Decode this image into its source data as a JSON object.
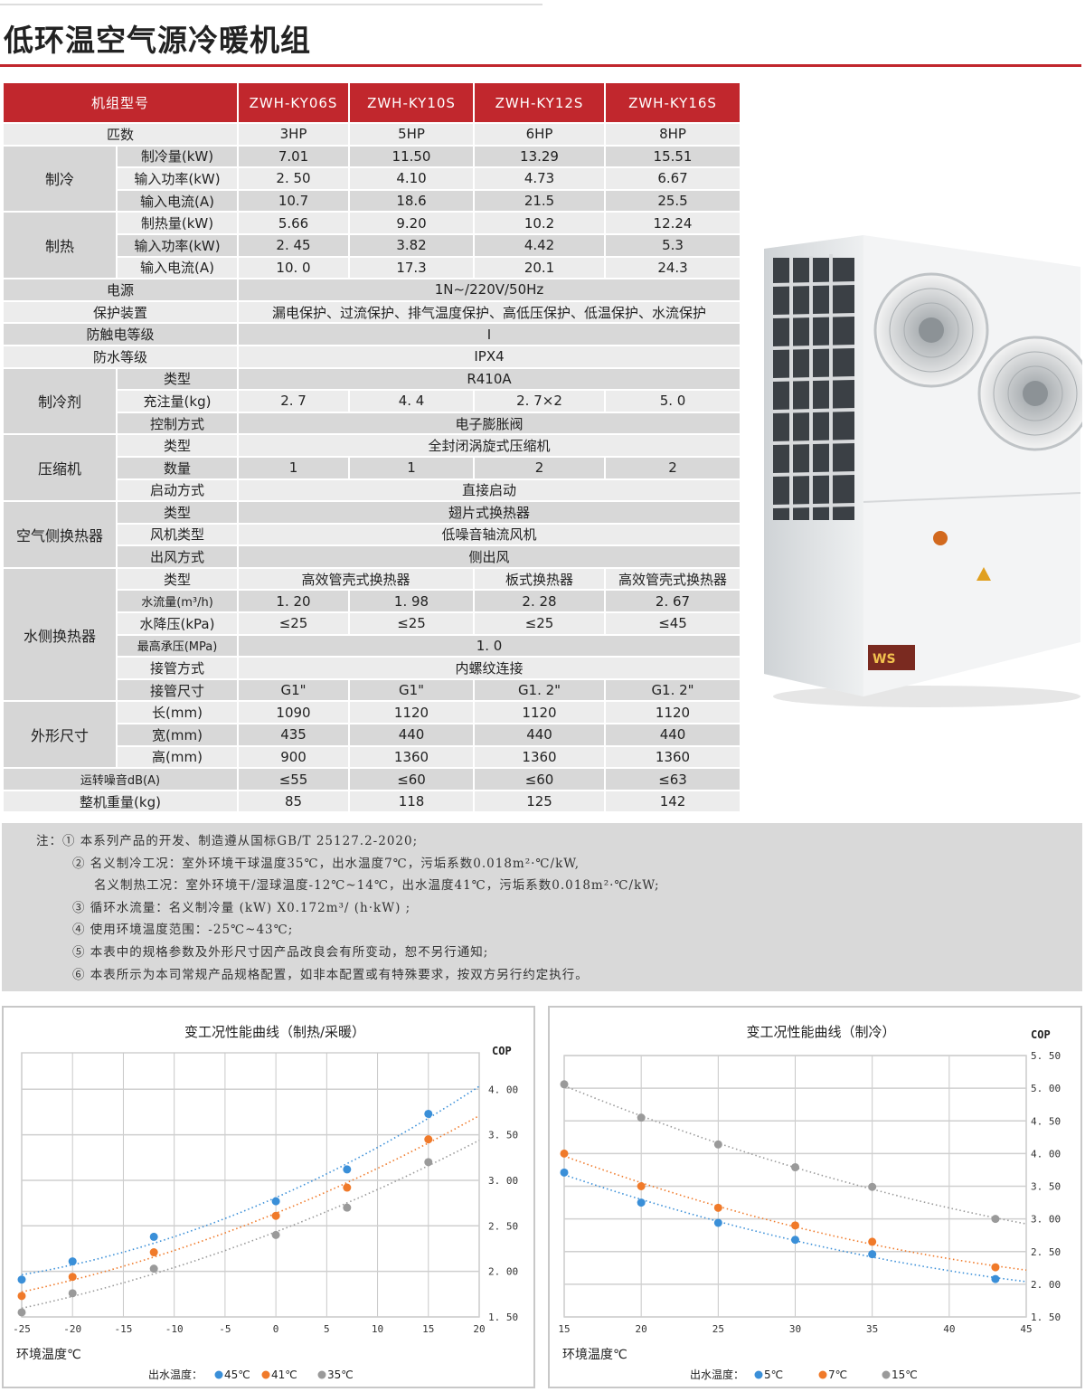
{
  "page_title": "低环温空气源冷暖机组",
  "table": {
    "header": {
      "label": "机组型号",
      "models": [
        "ZWH-KY06S",
        "ZWH-KY10S",
        "ZWH-KY12S",
        "ZWH-KY16S"
      ]
    },
    "rows": [
      {
        "label": "匹数",
        "values": [
          "3HP",
          "5HP",
          "6HP",
          "8HP"
        ]
      },
      {
        "group": "制冷",
        "items": [
          {
            "label": "制冷量(kW)",
            "values": [
              "7.01",
              "11.50",
              "13.29",
              "15.51"
            ]
          },
          {
            "label": "输入功率(kW)",
            "values": [
              "2. 50",
              "4.10",
              "4.73",
              "6.67"
            ]
          },
          {
            "label": "输入电流(A)",
            "values": [
              "10.7",
              "18.6",
              "21.5",
              "25.5"
            ]
          }
        ]
      },
      {
        "group": "制热",
        "items": [
          {
            "label": "制热量(kW)",
            "values": [
              "5.66",
              "9.20",
              "10.2",
              "12.24"
            ]
          },
          {
            "label": "输入功率(kW)",
            "values": [
              "2. 45",
              "3.82",
              "4.42",
              "5.3"
            ]
          },
          {
            "label": "输入电流(A)",
            "values": [
              "10. 0",
              "17.3",
              "20.1",
              "24.3"
            ]
          }
        ]
      },
      {
        "label": "电源",
        "values": [
          "1N~/220V/50Hz"
        ]
      },
      {
        "label": "保护装置",
        "values": [
          "漏电保护、过流保护、排气温度保护、高低压保护、低温保护、水流保护"
        ]
      },
      {
        "label": "防触电等级",
        "values": [
          "I"
        ]
      },
      {
        "label": "防水等级",
        "values": [
          "IPX4"
        ]
      },
      {
        "group": "制冷剂",
        "items": [
          {
            "label": "类型",
            "values": [
              "R410A"
            ]
          },
          {
            "label": "充注量(kg)",
            "values": [
              "2. 7",
              "4. 4",
              "2. 7×2",
              "5. 0"
            ]
          },
          {
            "label": "控制方式",
            "values": [
              "电子膨胀阀"
            ]
          }
        ]
      },
      {
        "group": "压缩机",
        "items": [
          {
            "label": "类型",
            "values": [
              "全封闭涡旋式压缩机"
            ]
          },
          {
            "label": "数量",
            "values": [
              "1",
              "1",
              "2",
              "2"
            ]
          },
          {
            "label": "启动方式",
            "values": [
              "直接启动"
            ]
          }
        ]
      },
      {
        "group": "空气侧换热器",
        "items": [
          {
            "label": "类型",
            "values": [
              "翅片式换热器"
            ]
          },
          {
            "label": "风机类型",
            "values": [
              "低噪音轴流风机"
            ]
          },
          {
            "label": "出风方式",
            "values": [
              "侧出风"
            ]
          }
        ]
      },
      {
        "group": "水侧换热器",
        "items": [
          {
            "label": "类型",
            "values": [
              "高效管壳式换热器",
              "板式换热器",
              "高效管壳式换热器"
            ]
          },
          {
            "label": "水流量(m³/h)",
            "values": [
              "1. 20",
              "1. 98",
              "2. 28",
              "2. 67"
            ]
          },
          {
            "label": "水降压(kPa)",
            "values": [
              "≤25",
              "≤25",
              "≤25",
              "≤45"
            ]
          },
          {
            "label": "最高承压(MPa)",
            "values": [
              "1. 0"
            ]
          },
          {
            "label": "接管方式",
            "values": [
              "内螺纹连接"
            ]
          },
          {
            "label": "接管尺寸",
            "values": [
              "G1\"",
              "G1\"",
              "G1. 2\"",
              "G1. 2\""
            ]
          }
        ]
      },
      {
        "group": "外形尺寸",
        "items": [
          {
            "label": "长(mm)",
            "values": [
              "1090",
              "1120",
              "1120",
              "1120"
            ]
          },
          {
            "label": "宽(mm)",
            "values": [
              "435",
              "440",
              "440",
              "440"
            ]
          },
          {
            "label": "高(mm)",
            "values": [
              "900",
              "1360",
              "1360",
              "1360"
            ]
          }
        ]
      },
      {
        "label": "运转噪音dB(A)",
        "values": [
          "≤55",
          "≤60",
          "≤60",
          "≤63"
        ]
      },
      {
        "label": "整机重量(kg)",
        "values": [
          "85",
          "118",
          "125",
          "142"
        ]
      }
    ]
  },
  "product_image": {
    "badge": "WS"
  },
  "notes": {
    "prefix": "注：",
    "lines": [
      "① 本系列产品的开发、制造遵从国标GB/T 25127.2-2020;",
      "② 名义制冷工况：室外环境干球温度35℃，出水温度7℃，污垢系数0.018m²·℃/kW,",
      "名义制热工况：室外环境干/湿球温度-12℃~14℃，出水温度41℃，污垢系数0.018m²·℃/kW;",
      "③ 循环水流量：名义制冷量 (kW) X0.172m³/ (h·kW) ;",
      "④ 使用环境温度范围：-25℃~43℃;",
      "⑤ 本表中的规格参数及外形尺寸因产品改良会有所变动，恕不另行通知;",
      "⑥ 本表所示为本司常规产品规格配置，如非本配置或有特殊要求，按双方另行约定执行。"
    ]
  },
  "chart_data": [
    {
      "type": "scatter",
      "title": "变工况性能曲线（制热/采暖）",
      "xlabel": "环境温度℃",
      "ylabel": "COP",
      "xlim": [
        -25,
        20
      ],
      "ylim": [
        1.5,
        4.4
      ],
      "xticks": [
        -25,
        -20,
        -15,
        -10,
        -5,
        0,
        5,
        10,
        15,
        20
      ],
      "xtick_labels": [
        "-25",
        "-20",
        "-15",
        "-10",
        "-5",
        "0",
        "5",
        "10",
        "15",
        "20"
      ],
      "yticks": [
        1.5,
        2.0,
        2.5,
        3.0,
        3.5,
        4.0
      ],
      "ytick_labels": [
        "1. 50",
        "2. 00",
        "2. 50",
        "3. 00",
        "3. 50",
        "4. 00"
      ],
      "grid": true,
      "trendline": "dotted polynomial",
      "legend_title": "出水温度：",
      "legend_position": "bottom",
      "x": [
        -25,
        -20,
        -12,
        0,
        7,
        15
      ],
      "series": [
        {
          "name": "45℃",
          "color": "#3a8fd8",
          "values": [
            1.91,
            2.11,
            2.38,
            2.77,
            3.12,
            3.73
          ]
        },
        {
          "name": "41℃",
          "color": "#f07a2a",
          "values": [
            1.73,
            1.94,
            2.21,
            2.61,
            2.92,
            3.45
          ]
        },
        {
          "name": "35℃",
          "color": "#9a9a9a",
          "values": [
            1.55,
            1.76,
            2.03,
            2.4,
            2.7,
            3.2
          ]
        }
      ]
    },
    {
      "type": "scatter",
      "title": "变工况性能曲线（制冷）",
      "xlabel": "环境温度℃",
      "ylabel": "COP",
      "xlim": [
        15,
        45
      ],
      "ylim": [
        1.5,
        5.5
      ],
      "xticks": [
        15,
        20,
        25,
        30,
        35,
        40,
        45
      ],
      "xtick_labels": [
        "15",
        "20",
        "25",
        "30",
        "35",
        "40",
        "45"
      ],
      "yticks": [
        1.5,
        2.0,
        2.5,
        3.0,
        3.5,
        4.0,
        4.5,
        5.0,
        5.5
      ],
      "ytick_labels": [
        "1. 50",
        "2. 00",
        "2. 50",
        "3. 00",
        "3. 50",
        "4. 00",
        "4. 50",
        "5. 00",
        "5. 50"
      ],
      "grid": true,
      "trendline": "dotted polynomial",
      "legend_title": "出水温度：",
      "legend_position": "bottom",
      "x": [
        15,
        20,
        25,
        30,
        35,
        43
      ],
      "series": [
        {
          "name": "5℃",
          "color": "#3a8fd8",
          "values": [
            3.71,
            3.25,
            2.94,
            2.68,
            2.46,
            2.08
          ]
        },
        {
          "name": "7℃",
          "color": "#f07a2a",
          "values": [
            4.0,
            3.5,
            3.17,
            2.9,
            2.65,
            2.26
          ]
        },
        {
          "name": "15℃",
          "color": "#9a9a9a",
          "values": [
            5.06,
            4.55,
            4.14,
            3.79,
            3.49,
            3.0
          ]
        }
      ]
    }
  ]
}
